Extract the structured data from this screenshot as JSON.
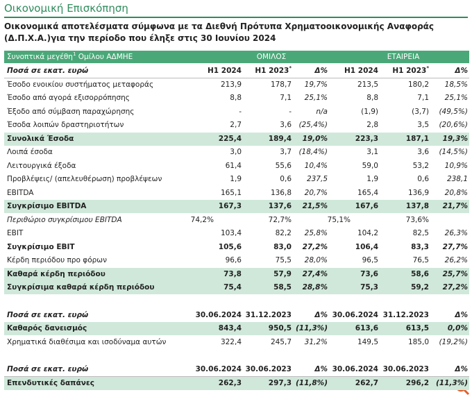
{
  "header": {
    "title": "Οικονομική Επισκόπηση",
    "subtitle": "Οικονομικά αποτελέσματα σύμφωνα με τα Διεθνή Πρότυπα Χρηματοοικονομικής Αναφοράς (Δ.Π.Χ.Α.)για την περίοδο που έληξε στις 30 Ιουνίου 2024"
  },
  "table": {
    "group_header": {
      "label": "Συνοπτικά μεγέθη",
      "label_sup": "1",
      "label_suffix": "Ομίλου ΑΔΜΗΕ",
      "groups": [
        "ΟΜΙΛΟΣ",
        "ΕΤΑΙΡΕΙΑ"
      ]
    },
    "sections": [
      {
        "columns": [
          "Ποσά σε εκατ. ευρώ",
          "H1 2024",
          {
            "text": "H1 2023",
            "sup": "*"
          },
          "Δ%",
          "H1 2024",
          {
            "text": "H1 2023",
            "sup": "*"
          },
          "Δ%"
        ],
        "rows": [
          {
            "label": "Έσοδο ενοικίου συστήματος μεταφοράς",
            "cells": [
              "213,9",
              "178,7",
              "19,7%",
              "213,5",
              "180,2",
              "18,5%"
            ]
          },
          {
            "label": "Έσοδο από αγορά εξισορρόπησης",
            "cells": [
              "8,8",
              "7,1",
              "25,1%",
              "8,8",
              "7,1",
              "25,1%"
            ]
          },
          {
            "label": "Έξοδο από σύμβαση παραχώρησης",
            "cells": [
              "-",
              "-",
              "n/a",
              "(1,9)",
              "(3,7)",
              "(49,5%)"
            ]
          },
          {
            "label": "Έσοδα λοιπών δραστηριοτήτων",
            "cells": [
              "2,7",
              "3,6",
              "(25,4%)",
              "2,8",
              "3,5",
              "(20,6%)"
            ]
          },
          {
            "label": "Συνολικά Έσοδα",
            "style": "band",
            "cells": [
              "225,4",
              "189,4",
              "19,0%",
              "223,3",
              "187,1",
              "19,3%"
            ]
          },
          {
            "label": "Λοιπά έσοδα",
            "cells": [
              "3,0",
              "3,7",
              "(18,4%)",
              "3,1",
              "3,6",
              "(14,5%)"
            ]
          },
          {
            "label": "Λειτουργικά έξοδα",
            "cells": [
              "61,4",
              "55,6",
              "10,4%",
              "59,0",
              "53,2",
              "10,9%"
            ]
          },
          {
            "label": "Προβλέψεις/ (απελευθέρωση) προβλέψεων",
            "cells": [
              "1,9",
              "0,6",
              "237,5",
              "1,9",
              "0,6",
              "238,1"
            ]
          },
          {
            "label": "EBITDA",
            "cells": [
              "165,1",
              "136,8",
              "20,7%",
              "165,4",
              "136,9",
              "20,8%"
            ]
          },
          {
            "label": "Συγκρίσιμο EBITDA",
            "style": "band",
            "cells": [
              "167,3",
              "137,6",
              "21,5%",
              "167,6",
              "137,8",
              "21,7%"
            ]
          },
          {
            "label": "Περιθώριο συγκρίσιμου EBITDA",
            "style": "italic",
            "cells": [
              "74,2%",
              "72,7%",
              null,
              "75,1%",
              "73,6%",
              null
            ]
          },
          {
            "label": "EBIT",
            "cells": [
              "103,4",
              "82,2",
              "25,8%",
              "104,2",
              "82,5",
              "26,3%"
            ]
          },
          {
            "label": "Συγκρίσιμο EBIT",
            "style": "bold",
            "cells": [
              "105,6",
              "83,0",
              "27,2%",
              "106,4",
              "83,3",
              "27,7%"
            ]
          },
          {
            "label": "Κέρδη περιόδου προ φόρων",
            "cells": [
              "96,6",
              "75,5",
              "28,0%",
              "96,5",
              "76,5",
              "26,2%"
            ]
          },
          {
            "label": "Καθαρά κέρδη περιόδου",
            "style": "band",
            "cells": [
              "73,8",
              "57,9",
              "27,4%",
              "73,6",
              "58,6",
              "25,7%"
            ]
          },
          {
            "label": "Συγκρίσιμα καθαρά κέρδη περιόδου",
            "style": "band",
            "cells": [
              "75,4",
              "58,5",
              "28,8%",
              "75,3",
              "59,2",
              "27,2%"
            ]
          }
        ]
      },
      {
        "columns": [
          "Ποσά σε εκατ. ευρώ",
          "30.06.2024",
          "31.12.2023",
          "Δ%",
          "30.06.2024",
          "31.12.2023",
          "Δ%"
        ],
        "rows": [
          {
            "label": "Καθαρός δανεισμός",
            "style": "band",
            "cells": [
              "843,4",
              "950,5",
              "(11,3%)",
              "613,6",
              "613,5",
              "0,0%"
            ]
          },
          {
            "label": "Χρηματικά διαθέσιμα και ισοδύναμα αυτών",
            "cells": [
              "322,4",
              "245,7",
              "31,2%",
              "149,5",
              "185,0",
              "(19,2%)"
            ]
          }
        ]
      },
      {
        "columns": [
          "Ποσά σε εκατ. ευρώ",
          "30.06.2024",
          "30.06.2023",
          "Δ%",
          "30.06.2024",
          "30.06.2023",
          "Δ%"
        ],
        "rows": [
          {
            "label": "Επενδυτικές δαπάνες",
            "style": "band",
            "cells": [
              "262,3",
              "297,3",
              "(11,8%)",
              "262,7",
              "296,2",
              "(11,3%)"
            ]
          }
        ]
      }
    ]
  }
}
